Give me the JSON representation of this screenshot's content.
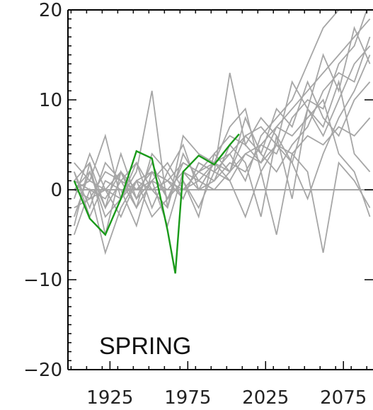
{
  "chart_data": {
    "type": "line",
    "title": "",
    "xlabel": "",
    "ylabel": "",
    "annotation": "SPRING",
    "xlim": [
      1898,
      2094
    ],
    "ylim": [
      -20,
      20
    ],
    "x_ticks": [
      1925,
      1975,
      2025,
      2075
    ],
    "x_tick_labels": [
      "1925",
      "1975",
      "2025",
      "2075"
    ],
    "y_ticks": [
      -20,
      -10,
      0,
      10,
      20
    ],
    "y_tick_labels": [
      "−20",
      "−10",
      "0",
      "10",
      "20"
    ],
    "zero_line": true,
    "colors": {
      "ensemble": "#a6a6a6",
      "observed": "#1a9a1a",
      "axis": "#000000"
    },
    "observed": {
      "x": [
        1902,
        1912,
        1922,
        1932,
        1942,
        1952,
        1962,
        1967,
        1972,
        1982,
        1992,
        2002,
        2008
      ],
      "values": [
        1.0,
        -3.2,
        -5.0,
        -1.0,
        4.3,
        3.5,
        -4.5,
        -9.3,
        2.0,
        3.8,
        2.8,
        5.0,
        6.2
      ]
    },
    "ensemble": [
      {
        "x": [
          1902,
          1912,
          1922,
          1932,
          1942,
          1952,
          1962,
          1972,
          1982,
          1992,
          2002,
          2012,
          2022,
          2032,
          2042,
          2052,
          2062,
          2072,
          2082,
          2092
        ],
        "values": [
          1,
          3,
          -2,
          1,
          0,
          2,
          1,
          3,
          2,
          4,
          6,
          5,
          3,
          7,
          9,
          11,
          13,
          15,
          17,
          19
        ]
      },
      {
        "x": [
          1902,
          1912,
          1922,
          1932,
          1942,
          1952,
          1962,
          1972,
          1982,
          1992,
          2002,
          2012,
          2022,
          2032,
          2042,
          2052,
          2062,
          2072,
          2082,
          2092
        ],
        "values": [
          -2,
          -1,
          0,
          2,
          -1,
          1,
          3,
          0,
          2,
          3,
          2,
          4,
          5,
          4,
          8,
          10,
          9,
          14,
          16,
          21
        ]
      },
      {
        "x": [
          1902,
          1912,
          1922,
          1932,
          1942,
          1952,
          1962,
          1972,
          1982,
          1992,
          2002,
          2012,
          2022,
          2032,
          2042,
          2052,
          2062,
          2072,
          2082,
          2092
        ],
        "values": [
          0,
          2,
          -3,
          -1,
          3,
          0,
          -2,
          4,
          1,
          0,
          2,
          6,
          4,
          2,
          5,
          7,
          11,
          13,
          12,
          17
        ]
      },
      {
        "x": [
          1902,
          1912,
          1922,
          1932,
          1942,
          1952,
          1962,
          1972,
          1982,
          1992,
          2002,
          2012,
          2022,
          2032,
          2042,
          2052,
          2062,
          2072,
          2082,
          2092
        ],
        "values": [
          2,
          -3,
          1,
          0,
          -4,
          2,
          1,
          -1,
          3,
          2,
          13,
          5,
          8,
          6,
          3,
          9,
          6,
          10,
          14,
          16
        ]
      },
      {
        "x": [
          1902,
          1912,
          1922,
          1932,
          1942,
          1952,
          1962,
          1972,
          1982,
          1992,
          2002,
          2012,
          2022,
          2032,
          2042,
          2052,
          2062,
          2072,
          2082,
          2092
        ],
        "values": [
          -5,
          0,
          -7,
          -2,
          1,
          -3,
          -1,
          1,
          -2,
          2,
          4,
          1,
          6,
          8,
          10,
          14,
          18,
          20,
          22,
          23
        ]
      },
      {
        "x": [
          1902,
          1912,
          1922,
          1932,
          1942,
          1952,
          1962,
          1972,
          1982,
          1992,
          2002,
          2012,
          2022,
          2032,
          2042,
          2052,
          2062,
          2072,
          2082,
          2092
        ],
        "values": [
          3,
          1,
          6,
          -1,
          2,
          11,
          -2,
          6,
          4,
          3,
          7,
          9,
          2,
          -5,
          4,
          2,
          -7,
          3,
          1,
          -2
        ]
      },
      {
        "x": [
          1902,
          1912,
          1922,
          1932,
          1942,
          1952,
          1962,
          1972,
          1982,
          1992,
          2002,
          2012,
          2022,
          2032,
          2042,
          2052,
          2062,
          2072,
          2082,
          2092
        ],
        "values": [
          0,
          -1,
          2,
          1,
          3,
          -2,
          2,
          5,
          0,
          1,
          3,
          2,
          5,
          7,
          6,
          8,
          10,
          4,
          2,
          -3
        ]
      },
      {
        "x": [
          1902,
          1912,
          1922,
          1932,
          1942,
          1952,
          1962,
          1972,
          1982,
          1992,
          2002,
          2012,
          2022,
          2032,
          2042,
          2052,
          2062,
          2072,
          2082,
          2092
        ],
        "values": [
          -1,
          4,
          0,
          -3,
          1,
          2,
          -1,
          1,
          -3,
          4,
          2,
          8,
          4,
          9,
          7,
          12,
          8,
          6,
          10,
          12
        ]
      },
      {
        "x": [
          1902,
          1912,
          1922,
          1932,
          1942,
          1952,
          1962,
          1972,
          1982,
          1992,
          2002,
          2012,
          2022,
          2032,
          2042,
          2052,
          2062,
          2072,
          2082,
          2092
        ],
        "values": [
          1,
          0,
          -1,
          2,
          0,
          1,
          0,
          2,
          1,
          3,
          1,
          4,
          3,
          5,
          4,
          6,
          5,
          7,
          6,
          8
        ]
      },
      {
        "x": [
          1902,
          1912,
          1922,
          1932,
          1942,
          1952,
          1962,
          1972,
          1982,
          1992,
          2002,
          2012,
          2022,
          2032,
          2042,
          2052,
          2062,
          2072,
          2082,
          2092
        ],
        "values": [
          -3,
          2,
          -2,
          4,
          -1,
          3,
          -1,
          3,
          2,
          1,
          5,
          3,
          -3,
          6,
          -1,
          9,
          7,
          12,
          4,
          2
        ]
      },
      {
        "x": [
          1902,
          1912,
          1922,
          1932,
          1942,
          1952,
          1962,
          1972,
          1982,
          1992,
          2002,
          2012,
          2022,
          2032,
          2042,
          2052,
          2062,
          2072,
          2082,
          2092
        ],
        "values": [
          2,
          -2,
          3,
          1,
          -2,
          4,
          2,
          -1,
          3,
          2,
          1,
          -3,
          2,
          5,
          3,
          -1,
          4,
          8,
          11,
          15
        ]
      },
      {
        "x": [
          1902,
          1912,
          1922,
          1932,
          1942,
          1952,
          1962,
          1972,
          1982,
          1992,
          2002,
          2012,
          2022,
          2032,
          2042,
          2052,
          2062,
          2072,
          2082,
          2092
        ],
        "values": [
          0,
          1,
          0,
          -1,
          1,
          0,
          1,
          0,
          1,
          0,
          0,
          0,
          0,
          0,
          0,
          0,
          0,
          0,
          0,
          0
        ]
      },
      {
        "x": [
          1902,
          1912,
          1922,
          1932,
          1942,
          1952,
          1962,
          1972,
          1982,
          1992,
          2002,
          2012,
          2022,
          2032,
          2042,
          2052,
          2062,
          2072,
          2082,
          2092
        ],
        "values": [
          -4,
          3,
          -5,
          2,
          -2,
          1,
          -4,
          2,
          0,
          3,
          4,
          6,
          7,
          5,
          12,
          9,
          15,
          11,
          18,
          14
        ]
      }
    ]
  }
}
